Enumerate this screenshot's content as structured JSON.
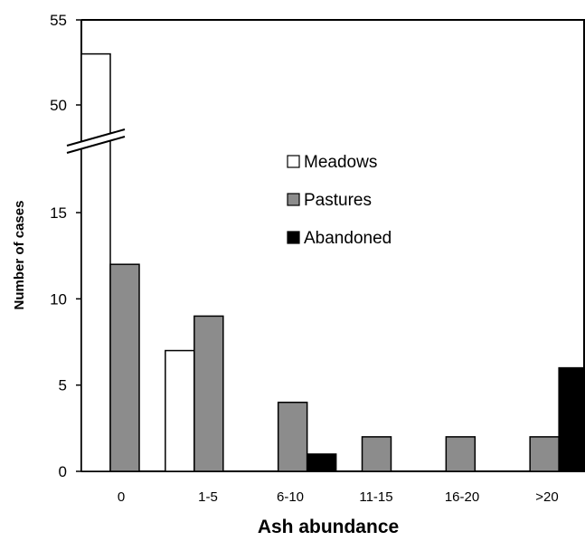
{
  "chart_data": {
    "type": "bar",
    "xlabel": "Ash abundance",
    "ylabel": "Number of cases",
    "categories": [
      "0",
      "1-5",
      "6-10",
      "11-15",
      "16-20",
      ">20"
    ],
    "series": [
      {
        "name": "Meadows",
        "color": "#ffffff",
        "values": [
          53,
          7,
          0,
          0,
          0,
          0
        ]
      },
      {
        "name": "Pastures",
        "color": "#8c8c8c",
        "values": [
          12,
          9,
          4,
          2,
          2,
          2
        ]
      },
      {
        "name": "Abandoned",
        "color": "#000000",
        "values": [
          0,
          0,
          1,
          0,
          0,
          6
        ]
      }
    ],
    "y_ticks": [
      "0",
      "5",
      "10",
      "15",
      "50",
      "55"
    ],
    "y_axis": {
      "lower_range": [
        0,
        20
      ],
      "upper_range": [
        47,
        55
      ],
      "broken": true
    },
    "legend_position": "upper-middle",
    "grid": false
  }
}
